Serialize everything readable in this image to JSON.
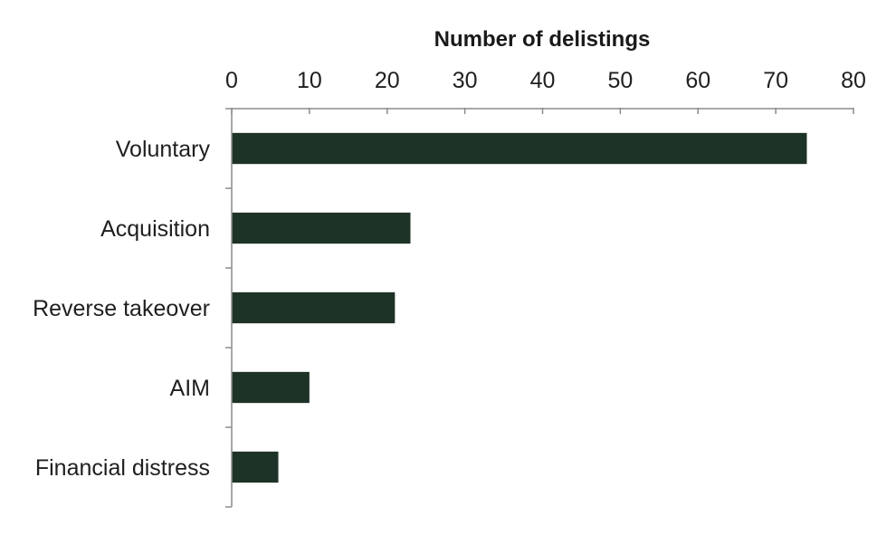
{
  "chart_data": {
    "type": "bar",
    "orientation": "horizontal",
    "xlabel": "Number of delistings",
    "xlabel_position": "top",
    "xlim": [
      0,
      80
    ],
    "x_ticks": [
      0,
      10,
      20,
      30,
      40,
      50,
      60,
      70,
      80
    ],
    "categories": [
      "Voluntary",
      "Acquisition",
      "Reverse takeover",
      "AIM",
      "Financial distress"
    ],
    "values": [
      74,
      23,
      21,
      10,
      6
    ],
    "grid": false,
    "legend": "none",
    "bar_color": "#1e3327"
  }
}
